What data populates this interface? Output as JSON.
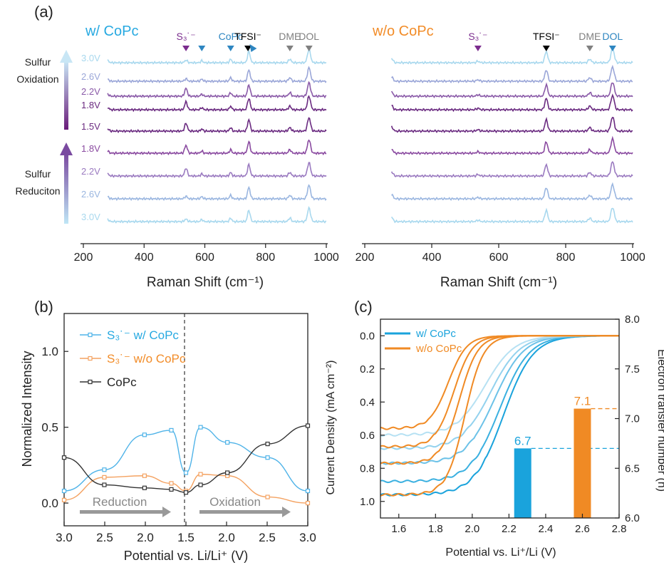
{
  "panel_a": {
    "label": "(a)",
    "xlabel": "Raman Shift (cm⁻¹)",
    "left": {
      "title": "w/ CoPc",
      "title_color": "#27a9e1",
      "peaks": [
        {
          "text": "S₃˙⁻",
          "color": "#7b2d8e",
          "x": 538,
          "tri": "down"
        },
        {
          "text": "",
          "color": "#2e86c1",
          "x": 590,
          "tri": "down"
        },
        {
          "text": "CoPc",
          "color": "#2e86c1",
          "x": 685,
          "tri": "down"
        },
        {
          "text": "TFSI⁻",
          "color": "#000000",
          "x": 742,
          "tri": "down"
        },
        {
          "text": "",
          "color": "#2e86c1",
          "x": 757,
          "tri": "right"
        },
        {
          "text": "DME",
          "color": "#808080",
          "x": 880,
          "tri": "down"
        },
        {
          "text": "DOL",
          "color": "#808080",
          "x": 943,
          "tri": "down"
        }
      ]
    },
    "right": {
      "title": "w/o CoPc",
      "title_color": "#f28c28",
      "peaks": [
        {
          "text": "S₃˙⁻",
          "color": "#7b2d8e",
          "x": 538,
          "tri": "down"
        },
        {
          "text": "TFSI⁻",
          "color": "#000000",
          "x": 742,
          "tri": "down"
        },
        {
          "text": "DME",
          "color": "#808080",
          "x": 872,
          "tri": "down"
        },
        {
          "text": "DOL",
          "color": "#2e86c1",
          "x": 940,
          "tri": "down"
        }
      ]
    },
    "xlim": [
      200,
      1000
    ],
    "xticks": [
      200,
      400,
      600,
      800,
      1000
    ],
    "oxidation_label": [
      "Sulfur",
      "Oxidation"
    ],
    "reduction_label": [
      "Sulfur",
      "Reduciton"
    ],
    "spectra_potentials": [
      "3.0V",
      "2.6V",
      "2.2V",
      "1.8V",
      "1.5V",
      "1.8V",
      "2.2V",
      "2.6V",
      "3.0V"
    ],
    "spectra_colors": [
      "#a8d8ee",
      "#9aa6d8",
      "#8a5aa8",
      "#6a2a80",
      "#6a2a80",
      "#8a4aa0",
      "#9a7ac0",
      "#9ab6e0",
      "#a8d8ee"
    ]
  },
  "panel_b": {
    "label": "(b)",
    "chart_data": {
      "type": "line",
      "xlabel": "Potential vs. Li/Li⁺ (V)",
      "ylabel": "Normalized Intensity",
      "ylim": [
        -0.15,
        1.25
      ],
      "yticks": [
        0.0,
        0.5,
        1.0
      ],
      "xtick_labels": [
        "3.0",
        "2.5",
        "2.0",
        "1.5",
        "2.0",
        "2.5",
        "3.0"
      ],
      "x": [
        3.0,
        2.6,
        2.2,
        1.8,
        1.5,
        1.8,
        2.2,
        2.6,
        3.0
      ],
      "series": [
        {
          "name": "S₃˙⁻  w/ CoPc",
          "color": "#4fb3e8",
          "values": [
            0.08,
            0.22,
            0.45,
            0.48,
            0.2,
            0.5,
            0.4,
            0.3,
            0.08
          ]
        },
        {
          "name": "S₃˙⁻  w/o CoPc",
          "color": "#f4a261",
          "values": [
            0.02,
            0.17,
            0.18,
            0.13,
            0.08,
            0.19,
            0.18,
            0.04,
            0.0
          ]
        },
        {
          "name": "CoPc",
          "color": "#333333",
          "values": [
            0.3,
            0.12,
            0.1,
            0.09,
            0.07,
            0.12,
            0.2,
            0.39,
            0.51
          ]
        }
      ],
      "reduction_label": "Reduction",
      "oxidation_label": "Oxidation"
    }
  },
  "panel_c": {
    "label": "(c)",
    "chart_data": {
      "type": "line",
      "xlabel": "Potential vs. Li⁺/Li (V)",
      "ylabel": "Current Density (mA cm⁻²)",
      "ylabel_right": "Electron transfer number (n)",
      "xlim": [
        1.5,
        2.8
      ],
      "xticks": [
        1.6,
        1.8,
        2.0,
        2.2,
        2.4,
        2.6,
        2.8
      ],
      "ylim": [
        1.1,
        -0.1
      ],
      "yticks": [
        0.0,
        0.2,
        0.4,
        0.6,
        0.8,
        1.0
      ],
      "y2lim": [
        6.0,
        8.0
      ],
      "y2ticks": [
        6.0,
        6.5,
        7.0,
        7.5,
        8.0
      ],
      "legend": [
        {
          "name": "w/   CoPc",
          "color": "#1aa3dc"
        },
        {
          "name": "w/o CoPc",
          "color": "#f08a24"
        }
      ],
      "series_wCoPc": [
        {
          "plateau": 0.96,
          "mid": 2.17,
          "width": 0.08,
          "color": "#1aa3dc"
        },
        {
          "plateau": 0.88,
          "mid": 2.15,
          "width": 0.08,
          "color": "#3ab0e0"
        },
        {
          "plateau": 0.77,
          "mid": 2.12,
          "width": 0.08,
          "color": "#6cc2e8"
        },
        {
          "plateau": 0.68,
          "mid": 2.1,
          "width": 0.08,
          "color": "#93d2ee"
        },
        {
          "plateau": 0.6,
          "mid": 2.07,
          "width": 0.08,
          "color": "#b6e1f3"
        }
      ],
      "series_woCoPc": [
        {
          "plateau": 0.96,
          "mid": 1.96,
          "width": 0.05,
          "color": "#f08a24"
        },
        {
          "plateau": 0.77,
          "mid": 1.93,
          "width": 0.05,
          "color": "#f08a24"
        },
        {
          "plateau": 0.67,
          "mid": 1.9,
          "width": 0.05,
          "color": "#f08a24"
        },
        {
          "plateau": 0.56,
          "mid": 1.87,
          "width": 0.05,
          "color": "#f08a24"
        }
      ],
      "bars": [
        {
          "label": "6.7",
          "x": 2.275,
          "value": 6.7,
          "color": "#1aa3dc"
        },
        {
          "label": "7.1",
          "x": 2.6,
          "value": 7.1,
          "color": "#f08a24"
        }
      ]
    }
  }
}
